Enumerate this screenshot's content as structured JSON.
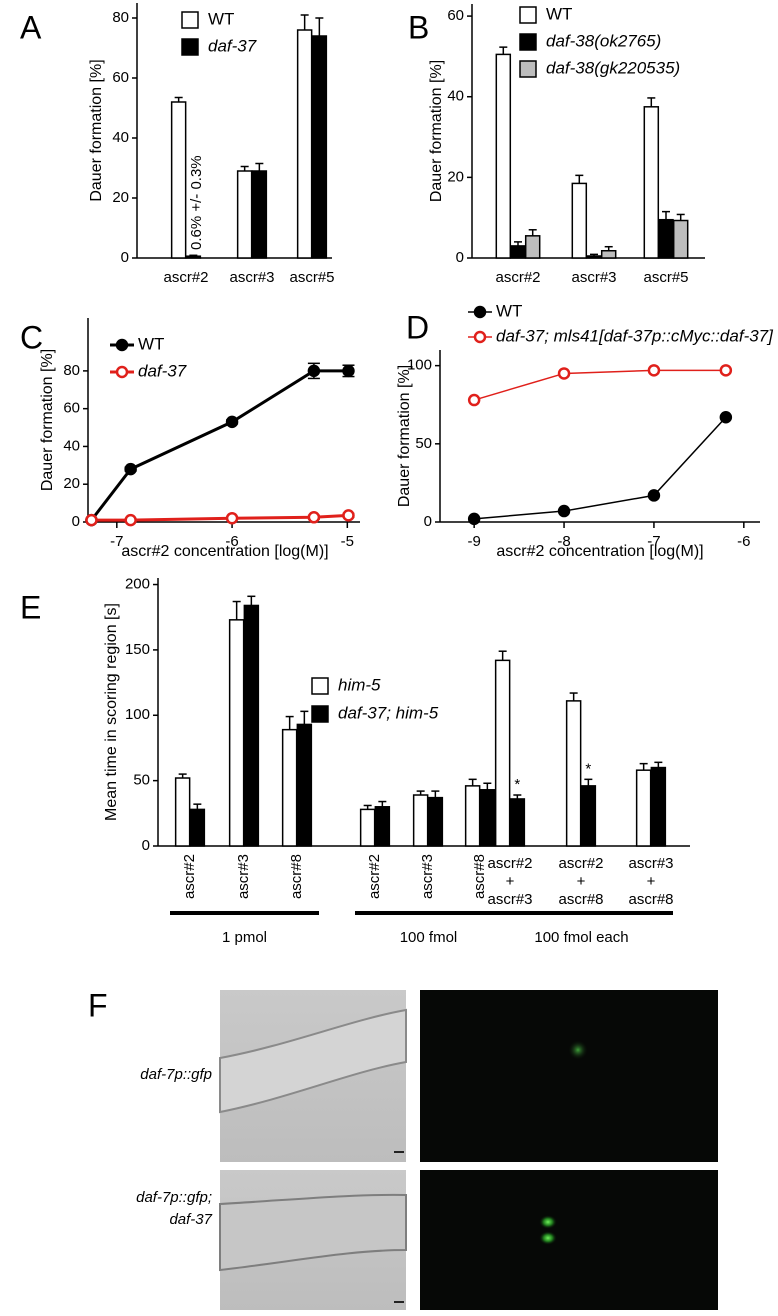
{
  "chart_data": [
    {
      "type": "bar",
      "panel": "A",
      "ylabel": "Dauer formation [%]",
      "categories": [
        "ascr#2",
        "ascr#3",
        "ascr#5"
      ],
      "series": [
        {
          "name": "WT",
          "color": "#ffffff",
          "italic": false,
          "values": [
            52,
            29,
            76
          ],
          "errors": [
            1.5,
            1.5,
            5
          ]
        },
        {
          "name": "daf-37",
          "color": "#000000",
          "italic": true,
          "values": [
            0.6,
            29,
            74
          ],
          "errors": [
            0.3,
            2.5,
            6
          ]
        }
      ],
      "annotation": "0.6% +/- 0.3%",
      "ylim": [
        0,
        85
      ],
      "yticks": [
        0,
        20,
        40,
        60,
        80
      ]
    },
    {
      "type": "bar",
      "panel": "B",
      "ylabel": "Dauer formation [%]",
      "categories": [
        "ascr#2",
        "ascr#3",
        "ascr#5"
      ],
      "series": [
        {
          "name": "WT",
          "color": "#ffffff",
          "italic": false,
          "values": [
            50.5,
            18.5,
            37.5
          ],
          "errors": [
            1.8,
            2,
            2.2
          ]
        },
        {
          "name": "daf-38(ok2765)",
          "color": "#000000",
          "italic": true,
          "values": [
            3,
            0.5,
            9.5
          ],
          "errors": [
            1,
            0.4,
            2
          ]
        },
        {
          "name": "daf-38(gk220535)",
          "color": "#bdbdbd",
          "italic": true,
          "values": [
            5.5,
            1.8,
            9.3
          ],
          "errors": [
            1.5,
            1,
            1.5
          ]
        }
      ],
      "ylim": [
        0,
        63
      ],
      "yticks": [
        0,
        20,
        40,
        60
      ]
    },
    {
      "type": "line",
      "panel": "C",
      "ylabel": "Dauer formation [%]",
      "xlabel": "ascr#2 concentration [log(M)]",
      "x": [
        -7.22,
        -6.88,
        -6,
        -5.29,
        -4.99
      ],
      "series": [
        {
          "name": "WT",
          "color": "#000000",
          "italic": false,
          "filled": true,
          "values": [
            1,
            28,
            53,
            80,
            80
          ],
          "errors": [
            0.5,
            1,
            1,
            4,
            3
          ]
        },
        {
          "name": "daf-37",
          "color": "#e0201b",
          "italic": true,
          "filled": false,
          "values": [
            1,
            1,
            2,
            2.5,
            3.5
          ],
          "errors": [
            0.5,
            0.5,
            0.5,
            1,
            1
          ]
        }
      ],
      "xlim": [
        -7.25,
        -4.89
      ],
      "xticks": [
        -7,
        -6,
        -5
      ],
      "ylim": [
        0,
        108
      ],
      "yticks": [
        0,
        20,
        40,
        60,
        80
      ]
    },
    {
      "type": "line",
      "panel": "D",
      "ylabel": "Dauer formation [%]",
      "xlabel": "ascr#2 concentration [log(M)]",
      "x": [
        -9,
        -8,
        -7,
        -6.2
      ],
      "series": [
        {
          "name": "WT",
          "color": "#000000",
          "italic": false,
          "filled": true,
          "values": [
            2,
            7,
            17,
            67
          ]
        },
        {
          "name": "daf-37; mls41[daf-37p::cMyc::daf-37]",
          "color": "#e0201b",
          "italic": true,
          "filled": false,
          "values": [
            78,
            95,
            97,
            97
          ]
        }
      ],
      "xlim": [
        -9.38,
        -5.82
      ],
      "xticks": [
        -9,
        -8,
        -7,
        -6
      ],
      "ylim": [
        0,
        110
      ],
      "yticks": [
        0,
        50,
        100
      ]
    },
    {
      "type": "bar",
      "panel": "E",
      "ylabel": "Mean time in scoring region [s]",
      "categories": [
        "ascr#2",
        "ascr#3",
        "ascr#8",
        "ascr#2",
        "ascr#3",
        "ascr#8",
        [
          "ascr#2",
          "+",
          "ascr#3"
        ],
        [
          "ascr#2",
          "+",
          "ascr#8"
        ],
        [
          "ascr#3",
          "+",
          "ascr#8"
        ]
      ],
      "group_labels": [
        "1 pmol",
        "100 fmol",
        "100 fmol each"
      ],
      "series": [
        {
          "name": "him-5",
          "color": "#ffffff",
          "italic": true,
          "values": [
            52,
            173,
            89,
            28,
            39,
            46,
            142,
            111,
            58
          ],
          "errors": [
            3,
            14,
            10,
            3,
            3,
            5,
            7,
            6,
            5
          ]
        },
        {
          "name": "daf-37; him-5",
          "color": "#000000",
          "italic": true,
          "values": [
            28,
            184,
            93,
            30,
            37,
            43,
            36,
            46,
            60
          ],
          "errors": [
            4,
            7,
            10,
            4,
            5,
            5,
            3,
            5,
            4
          ],
          "significance": [
            null,
            null,
            null,
            null,
            null,
            null,
            "*",
            "*",
            null
          ]
        }
      ],
      "ylim": [
        0,
        205
      ],
      "yticks": [
        0,
        50,
        100,
        150,
        200
      ]
    }
  ],
  "micrographs": {
    "panel": "F",
    "rows": [
      {
        "label": [
          "daf-7p::gfp"
        ]
      },
      {
        "label": [
          "daf-7p::gfp;",
          "daf-37"
        ]
      }
    ]
  }
}
